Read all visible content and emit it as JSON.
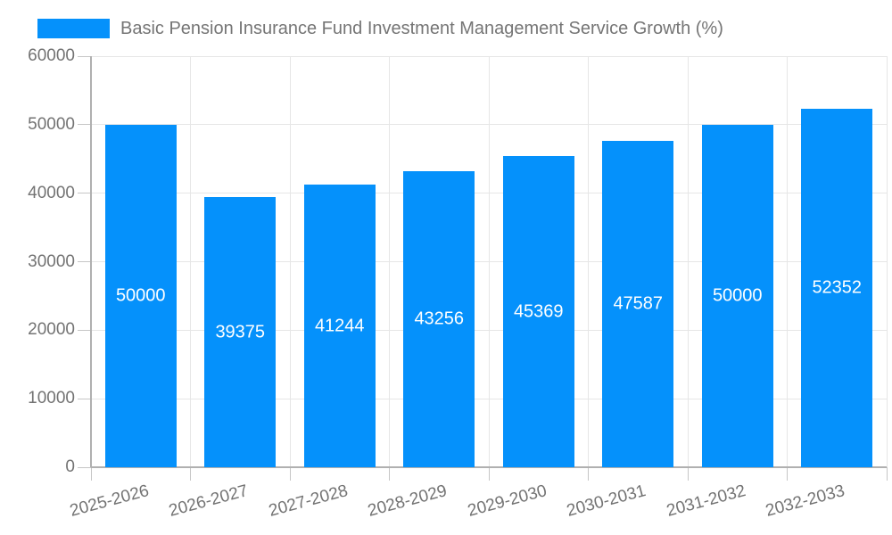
{
  "chart_data": {
    "type": "bar",
    "title": "Basic Pension Insurance Fund Investment Management Service Growth (%)",
    "legend": [
      "Basic Pension Insurance Fund Investment Management Service Growth (%)"
    ],
    "legend_position": "top",
    "categories": [
      "2025-2026",
      "2026-2027",
      "2027-2028",
      "2028-2029",
      "2029-2030",
      "2030-2031",
      "2031-2032",
      "2032-2033"
    ],
    "values": [
      50000,
      39375,
      41244,
      43256,
      45369,
      47587,
      50000,
      52352
    ],
    "xlabel": "",
    "ylabel": "",
    "ylim": [
      0,
      60000
    ],
    "yticks": [
      0,
      10000,
      20000,
      30000,
      40000,
      50000,
      60000
    ],
    "grid": true,
    "colors": {
      "bar": "#0591fb",
      "value_label": "#ffffff",
      "grid_line": "#e6e6e6",
      "axis_line": "#b0b0b0",
      "tick_line": "#c6c6c6",
      "tick_label": "#737373",
      "legend_text": "#757575",
      "background": "#ffffff"
    }
  }
}
